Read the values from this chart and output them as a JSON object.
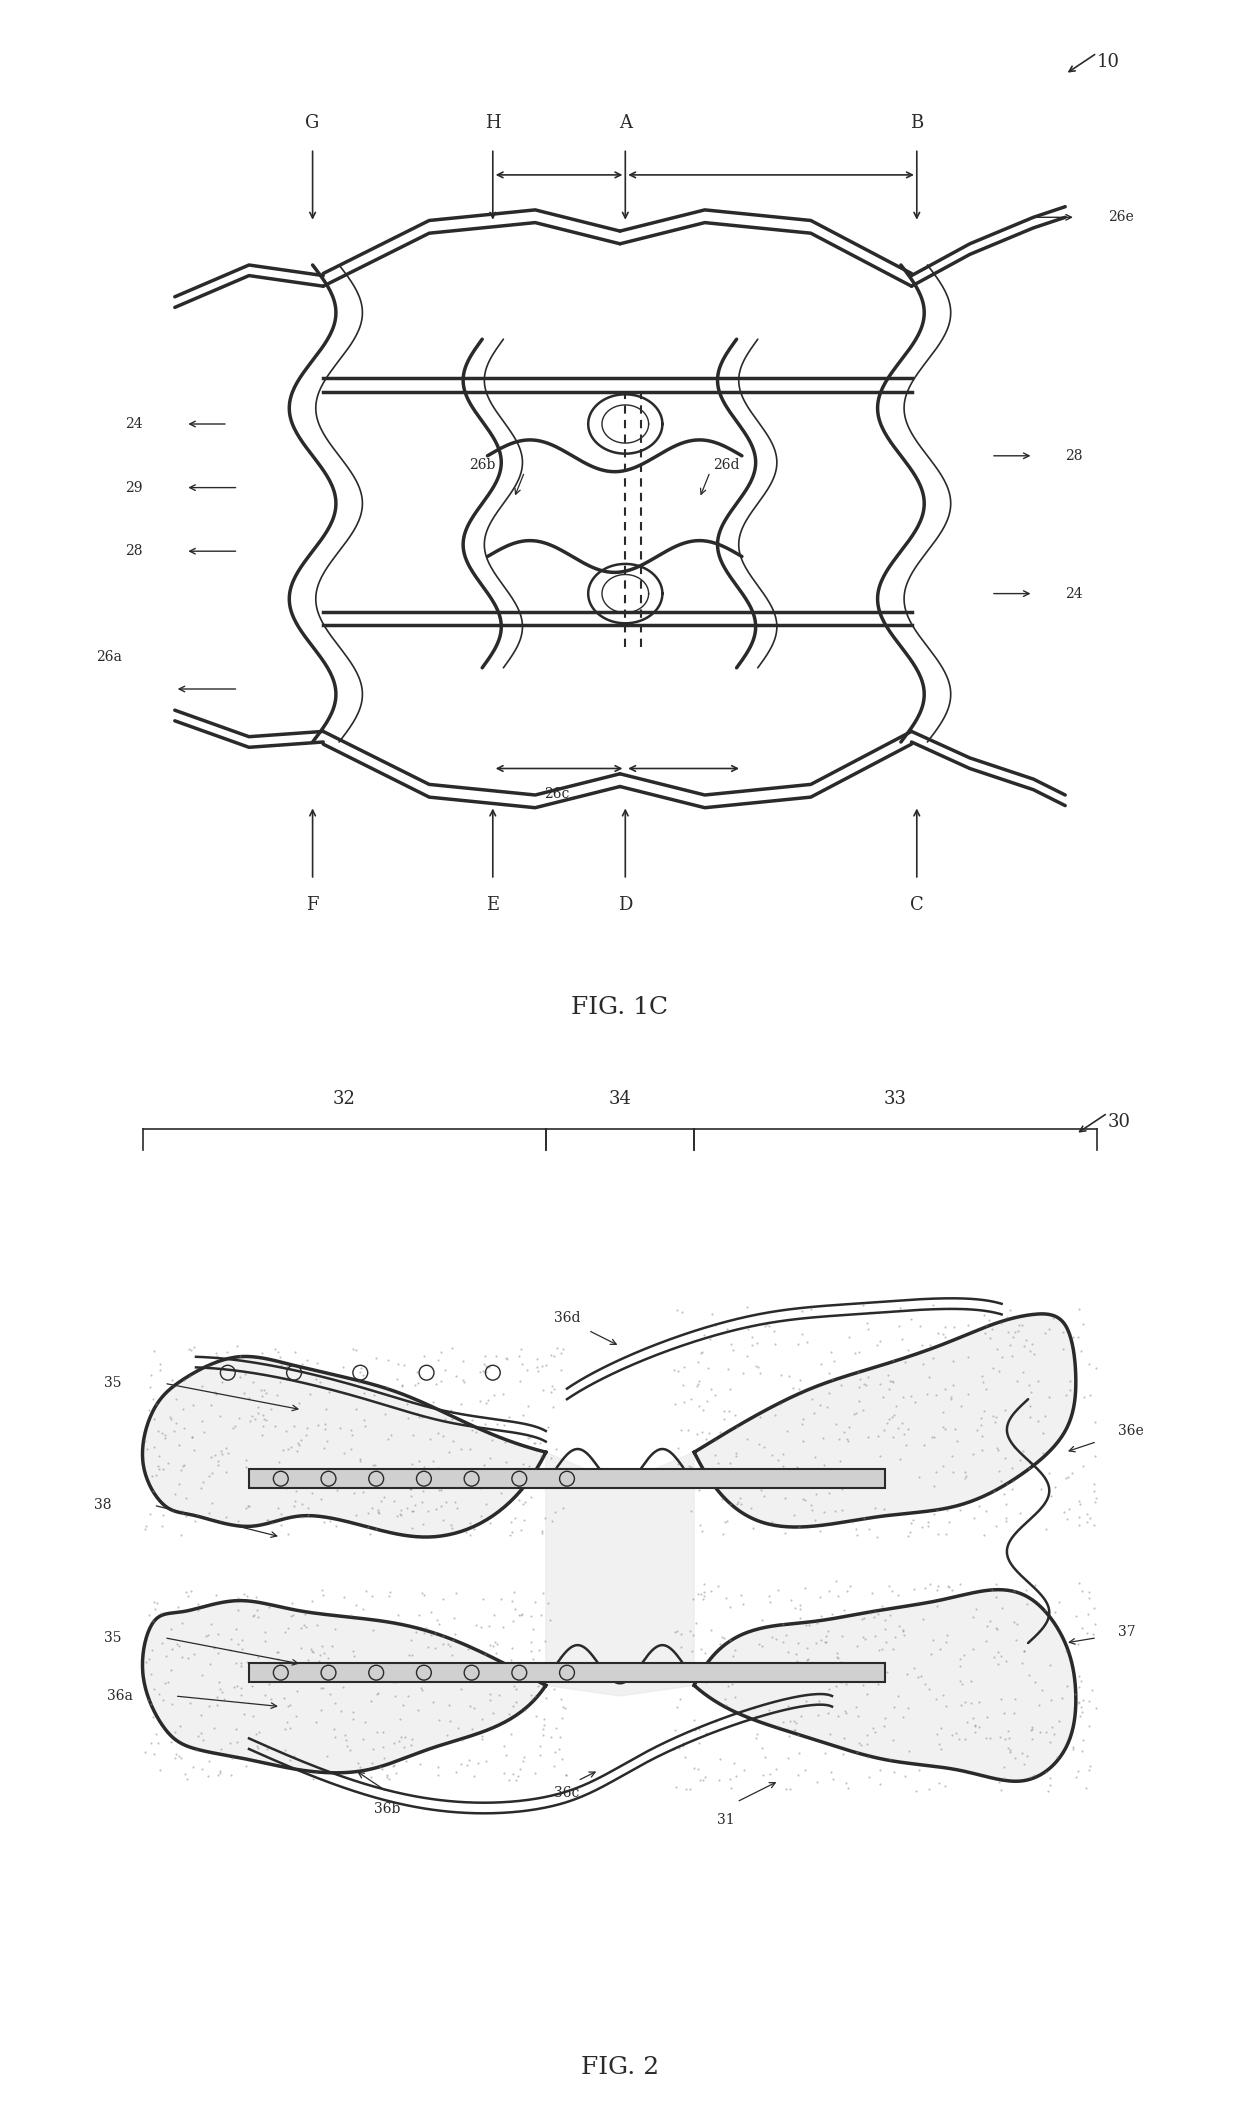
{
  "fig1c_title": "FIG. 1C",
  "fig2_title": "FIG. 2",
  "background_color": "#ffffff",
  "line_color": "#2a2a2a",
  "fig1_ref_number": "10",
  "fig2_ref_number": "30",
  "fig1_labels_top": [
    "G",
    "H",
    "A",
    "B"
  ],
  "fig1_labels_bottom": [
    "F",
    "E",
    "D",
    "C"
  ],
  "fig1_labels_right": [
    "26e",
    "28",
    "24"
  ],
  "fig1_labels_left": [
    "24",
    "29",
    "28",
    "26a"
  ],
  "fig1_labels_center": [
    "26b",
    "26d",
    "26c"
  ],
  "fig2_labels_top": [
    "32",
    "34",
    "33"
  ],
  "fig2_labels_left": [
    "35",
    "38",
    "35",
    "36a"
  ],
  "fig2_labels_center": [
    "36d",
    "36c",
    "36b",
    "31"
  ],
  "fig2_labels_right": [
    "36e",
    "37"
  ]
}
